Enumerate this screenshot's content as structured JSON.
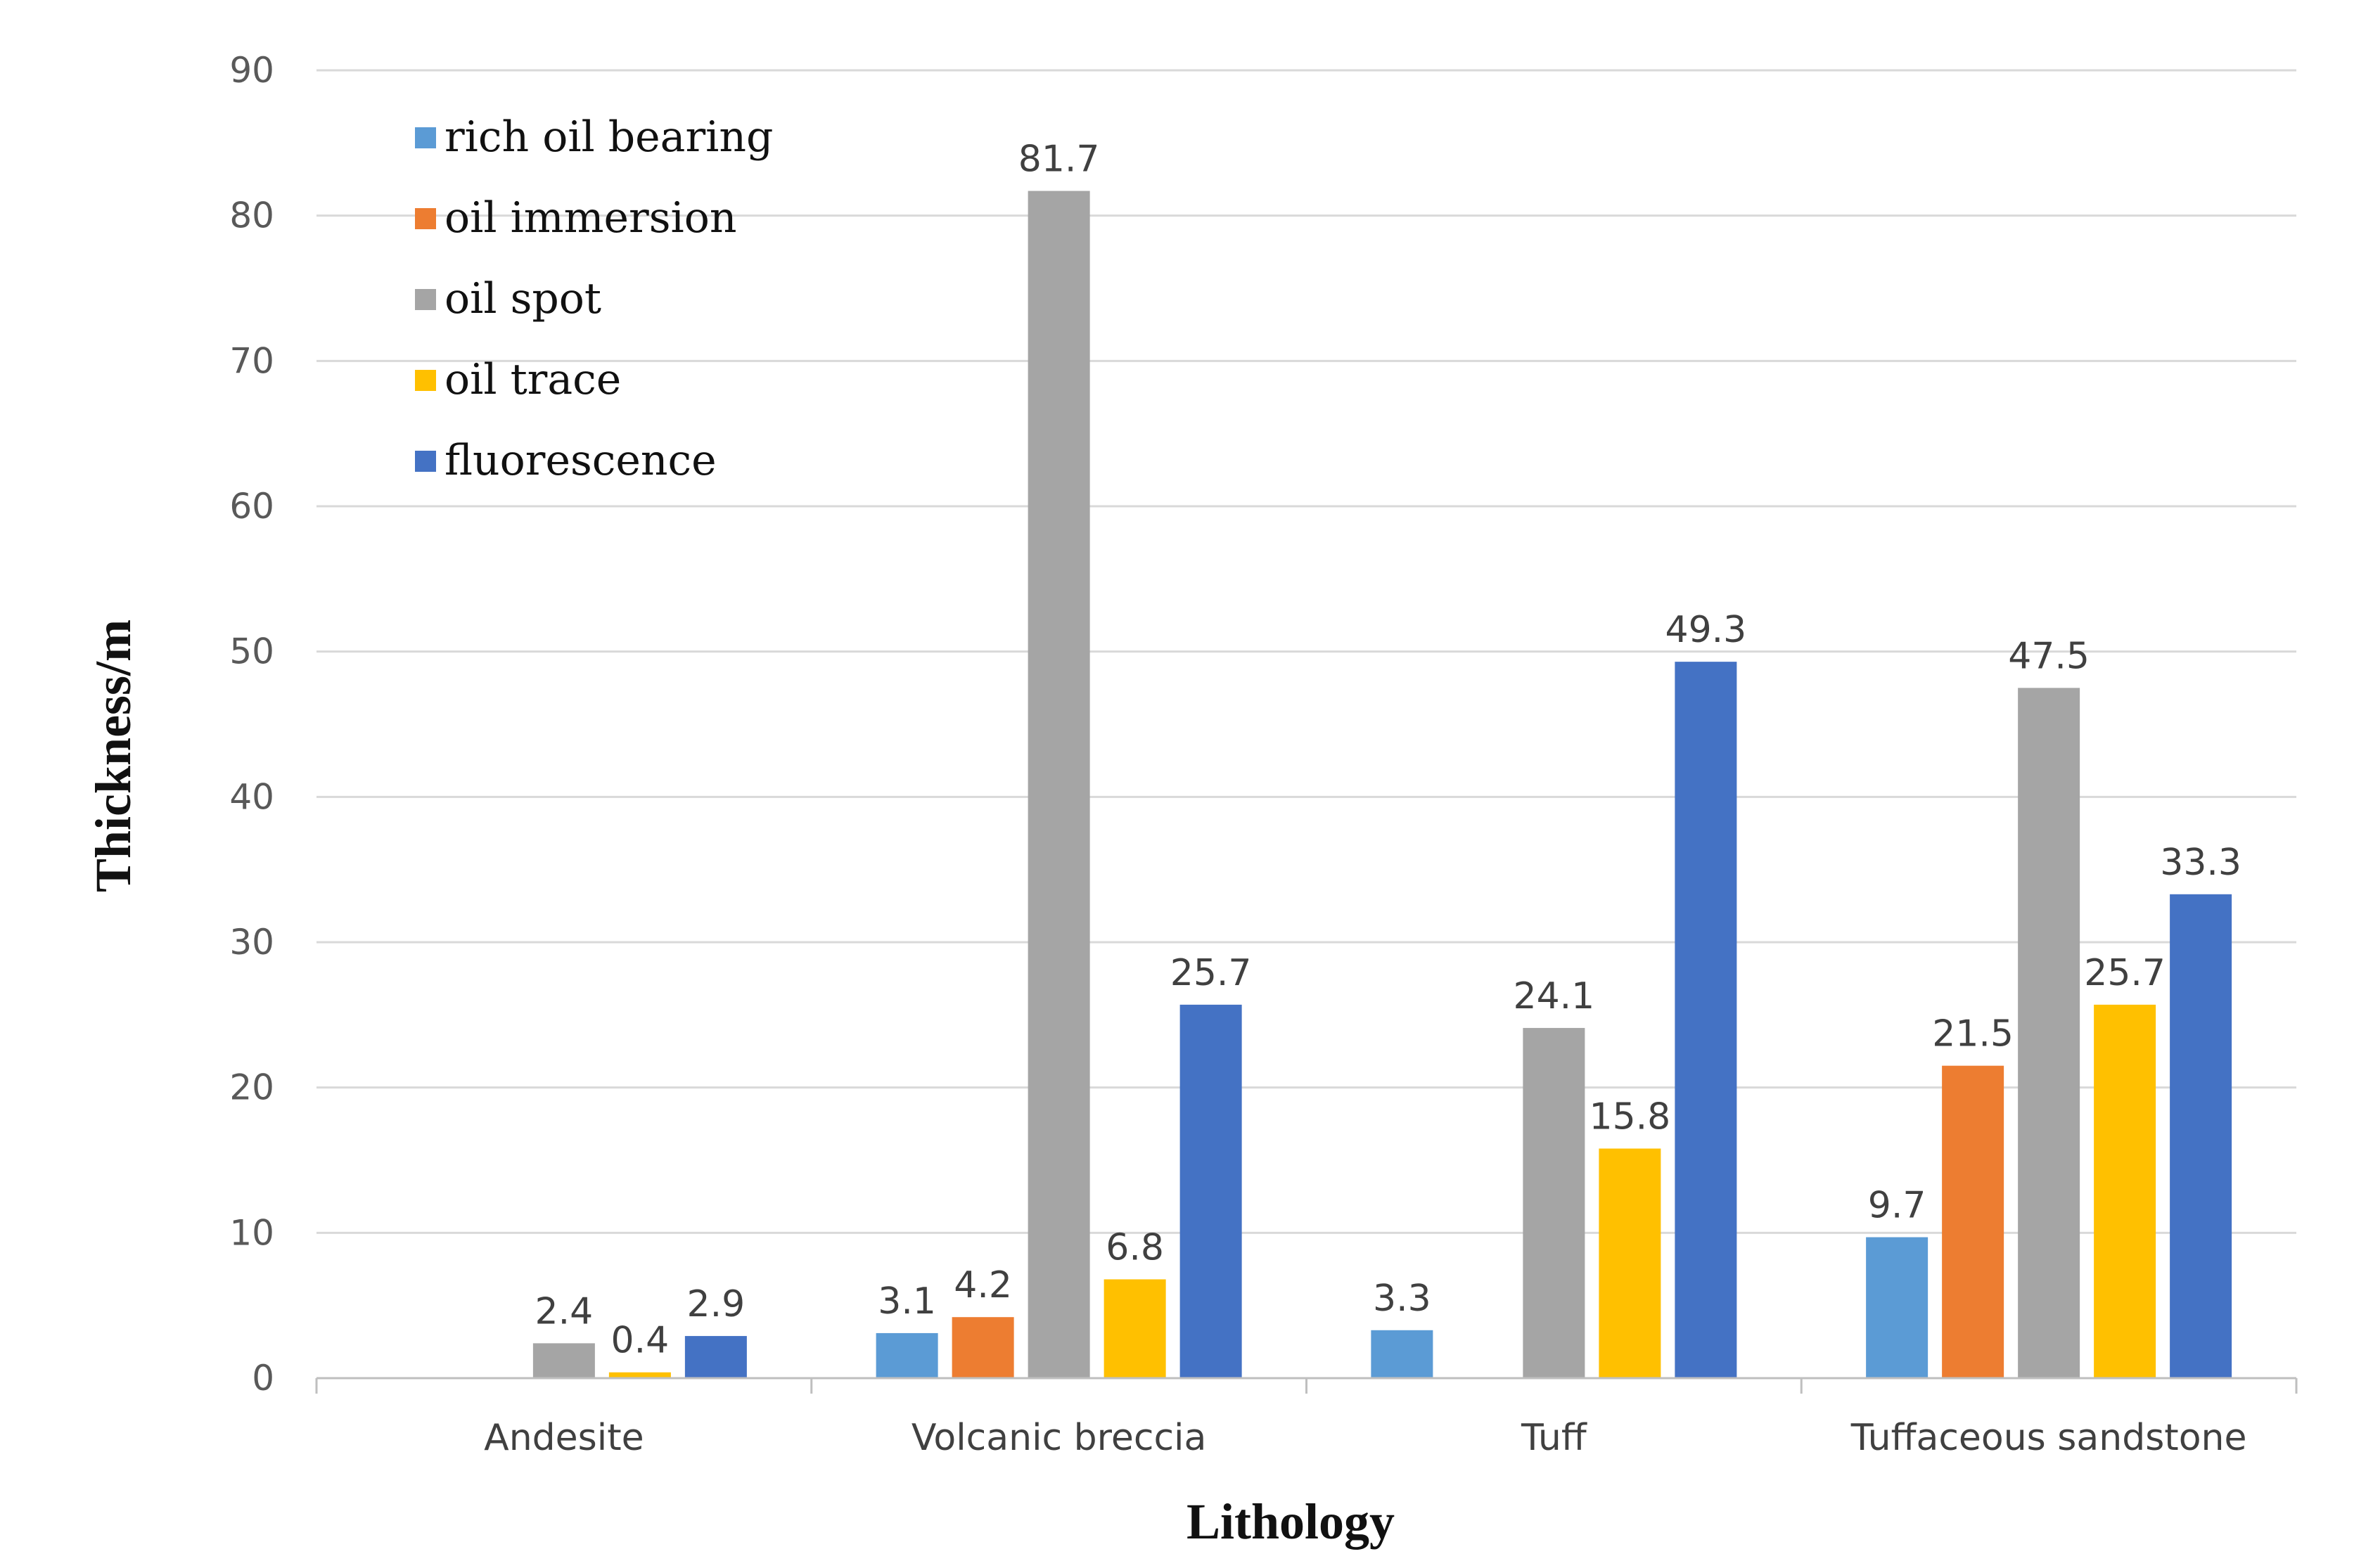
{
  "chart_data": {
    "type": "bar",
    "title": "",
    "xlabel": "Lithology",
    "ylabel": "Thickness/m",
    "ylim": [
      0,
      90
    ],
    "yticks": [
      0,
      10,
      20,
      30,
      40,
      50,
      60,
      70,
      80,
      90
    ],
    "grid": true,
    "legend_position": "top-left",
    "categories": [
      "Andesite",
      "Volcanic breccia",
      "Tuff",
      "Tuffaceous sandstone"
    ],
    "series": [
      {
        "name": "rich oil bearing",
        "color": "#5B9BD5",
        "values": [
          null,
          3.1,
          3.3,
          9.7
        ]
      },
      {
        "name": "oil immersion",
        "color": "#ED7D31",
        "values": [
          null,
          4.2,
          null,
          21.5
        ]
      },
      {
        "name": "oil spot",
        "color": "#A5A5A5",
        "values": [
          2.4,
          81.7,
          24.1,
          47.5
        ]
      },
      {
        "name": "oil trace",
        "color": "#FFC000",
        "values": [
          0.4,
          6.8,
          15.8,
          25.7
        ]
      },
      {
        "name": "fluorescence",
        "color": "#4472C4",
        "values": [
          2.9,
          25.7,
          49.3,
          33.3
        ]
      }
    ]
  }
}
